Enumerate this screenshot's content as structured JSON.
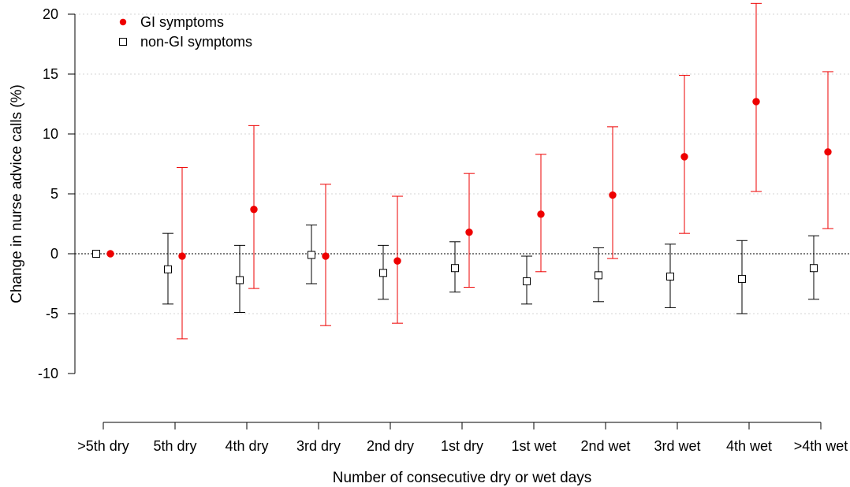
{
  "chart_data": {
    "type": "scatter",
    "title": "",
    "xlabel": "Number of consecutive dry or wet days",
    "ylabel": "Change in nurse advice calls (%)",
    "ylim": [
      -10,
      20
    ],
    "yticks": [
      -10,
      -5,
      0,
      5,
      10,
      15,
      20
    ],
    "categories": [
      ">5th dry",
      "5th dry",
      "4th dry",
      "3rd dry",
      "2nd dry",
      "1st dry",
      "1st wet",
      "2nd wet",
      "3rd wet",
      "4th wet",
      ">4th wet"
    ],
    "grid": "horizontal dotted",
    "reference_line": 0,
    "legend_position": "top-left",
    "series": [
      {
        "name": "GI symptoms",
        "marker": "filled-circle",
        "color": "#ee0000",
        "values": [
          0,
          -0.2,
          3.7,
          -0.2,
          -0.6,
          1.8,
          3.3,
          4.9,
          8.1,
          12.7,
          8.5
        ],
        "lower": [
          0,
          -7.1,
          -2.9,
          -6.0,
          -5.8,
          -2.8,
          -1.5,
          -0.4,
          1.7,
          5.2,
          2.1
        ],
        "upper": [
          0,
          7.2,
          10.7,
          5.8,
          4.8,
          6.7,
          8.3,
          10.6,
          14.9,
          20.9,
          15.2
        ]
      },
      {
        "name": "non-GI symptoms",
        "marker": "open-square",
        "color": "#000000",
        "values": [
          0,
          -1.3,
          -2.2,
          -0.1,
          -1.6,
          -1.2,
          -2.3,
          -1.8,
          -1.9,
          -2.1,
          -1.2
        ],
        "lower": [
          0,
          -4.2,
          -4.9,
          -2.5,
          -3.8,
          -3.2,
          -4.2,
          -4.0,
          -4.5,
          -5.0,
          -3.8
        ],
        "upper": [
          0,
          1.7,
          0.7,
          2.4,
          0.7,
          1.0,
          -0.2,
          0.5,
          0.8,
          1.1,
          1.5
        ]
      }
    ]
  }
}
